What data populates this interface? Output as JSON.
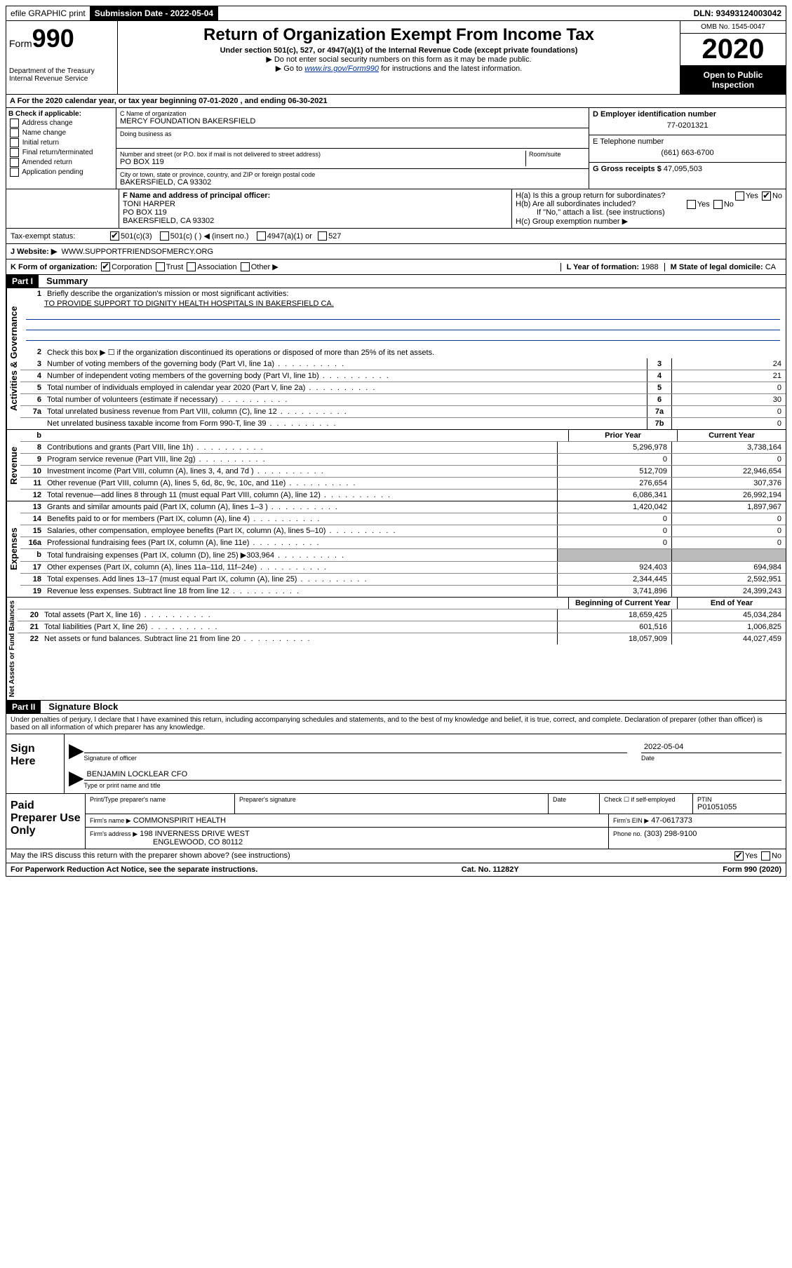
{
  "topbar": {
    "efile": "efile GRAPHIC print",
    "submission_label": "Submission Date - 2022-05-04",
    "dln": "DLN: 93493124003042"
  },
  "header": {
    "form_label": "Form",
    "form_number": "990",
    "dept": "Department of the Treasury\nInternal Revenue Service",
    "title": "Return of Organization Exempt From Income Tax",
    "subtitle": "Under section 501(c), 527, or 4947(a)(1) of the Internal Revenue Code (except private foundations)",
    "note1": "▶ Do not enter social security numbers on this form as it may be made public.",
    "note2_pre": "▶ Go to ",
    "note2_link": "www.irs.gov/Form990",
    "note2_post": " for instructions and the latest information.",
    "omb": "OMB No. 1545-0047",
    "year": "2020",
    "inspection": "Open to Public Inspection"
  },
  "line_a": "A For the 2020 calendar year, or tax year beginning 07-01-2020   , and ending 06-30-2021",
  "section_b": {
    "label": "B Check if applicable:",
    "opts": [
      "Address change",
      "Name change",
      "Initial return",
      "Final return/terminated",
      "Amended return",
      "Application pending"
    ]
  },
  "section_c": {
    "name_label": "C Name of organization",
    "name": "MERCY FOUNDATION BAKERSFIELD",
    "dba_label": "Doing business as",
    "addr_label": "Number and street (or P.O. box if mail is not delivered to street address)",
    "room_label": "Room/suite",
    "addr": "PO BOX 119",
    "city_label": "City or town, state or province, country, and ZIP or foreign postal code",
    "city": "BAKERSFIELD, CA  93302"
  },
  "section_d": {
    "label": "D Employer identification number",
    "value": "77-0201321"
  },
  "section_e": {
    "label": "E Telephone number",
    "value": "(661) 663-6700"
  },
  "section_g": {
    "label": "G Gross receipts $",
    "value": "47,095,503"
  },
  "section_f": {
    "label": "F Name and address of principal officer:",
    "name": "TONI HARPER",
    "addr1": "PO BOX 119",
    "addr2": "BAKERSFIELD, CA  93302"
  },
  "section_h": {
    "h_a": "H(a)  Is this a group return for subordinates?",
    "h_b": "H(b)  Are all subordinates included?",
    "h_note": "If \"No,\" attach a list. (see instructions)",
    "h_c": "H(c)  Group exemption number ▶"
  },
  "tax_exempt": {
    "label": "Tax-exempt status:",
    "opts": [
      "501(c)(3)",
      "501(c) (  ) ◀ (insert no.)",
      "4947(a)(1) or",
      "527"
    ]
  },
  "website": {
    "label": "J   Website: ▶",
    "value": "WWW.SUPPORTFRIENDSOFMERCY.ORG"
  },
  "korg": {
    "k_label": "K Form of organization:",
    "opts": [
      "Corporation",
      "Trust",
      "Association",
      "Other ▶"
    ],
    "l_label": "L Year of formation:",
    "l_val": "1988",
    "m_label": "M State of legal domicile:",
    "m_val": "CA"
  },
  "part1": {
    "header": "Part I",
    "title": "Summary",
    "line1": "Briefly describe the organization's mission or most significant activities:",
    "mission": "TO PROVIDE SUPPORT TO DIGNITY HEALTH HOSPITALS IN BAKERSFIELD CA.",
    "line2": "Check this box ▶ ☐  if the organization discontinued its operations or disposed of more than 25% of its net assets.",
    "lines_gov": [
      {
        "n": "3",
        "t": "Number of voting members of the governing body (Part VI, line 1a)",
        "c": "3",
        "v": "24"
      },
      {
        "n": "4",
        "t": "Number of independent voting members of the governing body (Part VI, line 1b)",
        "c": "4",
        "v": "21"
      },
      {
        "n": "5",
        "t": "Total number of individuals employed in calendar year 2020 (Part V, line 2a)",
        "c": "5",
        "v": "0"
      },
      {
        "n": "6",
        "t": "Total number of volunteers (estimate if necessary)",
        "c": "6",
        "v": "30"
      },
      {
        "n": "7a",
        "t": "Total unrelated business revenue from Part VIII, column (C), line 12",
        "c": "7a",
        "v": "0"
      },
      {
        "n": "",
        "t": "Net unrelated business taxable income from Form 990-T, line 39",
        "c": "7b",
        "v": "0"
      }
    ],
    "col_prior": "Prior Year",
    "col_current": "Current Year",
    "lines_rev": [
      {
        "n": "8",
        "t": "Contributions and grants (Part VIII, line 1h)",
        "p": "5,296,978",
        "c": "3,738,164"
      },
      {
        "n": "9",
        "t": "Program service revenue (Part VIII, line 2g)",
        "p": "0",
        "c": "0"
      },
      {
        "n": "10",
        "t": "Investment income (Part VIII, column (A), lines 3, 4, and 7d )",
        "p": "512,709",
        "c": "22,946,654"
      },
      {
        "n": "11",
        "t": "Other revenue (Part VIII, column (A), lines 5, 6d, 8c, 9c, 10c, and 11e)",
        "p": "276,654",
        "c": "307,376"
      },
      {
        "n": "12",
        "t": "Total revenue—add lines 8 through 11 (must equal Part VIII, column (A), line 12)",
        "p": "6,086,341",
        "c": "26,992,194"
      }
    ],
    "lines_exp": [
      {
        "n": "13",
        "t": "Grants and similar amounts paid (Part IX, column (A), lines 1–3 )",
        "p": "1,420,042",
        "c": "1,897,967"
      },
      {
        "n": "14",
        "t": "Benefits paid to or for members (Part IX, column (A), line 4)",
        "p": "0",
        "c": "0"
      },
      {
        "n": "15",
        "t": "Salaries, other compensation, employee benefits (Part IX, column (A), lines 5–10)",
        "p": "0",
        "c": "0"
      },
      {
        "n": "16a",
        "t": "Professional fundraising fees (Part IX, column (A), line 11e)",
        "p": "0",
        "c": "0"
      },
      {
        "n": "b",
        "t": "Total fundraising expenses (Part IX, column (D), line 25) ▶303,964",
        "p": "",
        "c": "",
        "shaded": true
      },
      {
        "n": "17",
        "t": "Other expenses (Part IX, column (A), lines 11a–11d, 11f–24e)",
        "p": "924,403",
        "c": "694,984"
      },
      {
        "n": "18",
        "t": "Total expenses. Add lines 13–17 (must equal Part IX, column (A), line 25)",
        "p": "2,344,445",
        "c": "2,592,951"
      },
      {
        "n": "19",
        "t": "Revenue less expenses. Subtract line 18 from line 12",
        "p": "3,741,896",
        "c": "24,399,243"
      }
    ],
    "col_begin": "Beginning of Current Year",
    "col_end": "End of Year",
    "lines_net": [
      {
        "n": "20",
        "t": "Total assets (Part X, line 16)",
        "p": "18,659,425",
        "c": "45,034,284"
      },
      {
        "n": "21",
        "t": "Total liabilities (Part X, line 26)",
        "p": "601,516",
        "c": "1,006,825"
      },
      {
        "n": "22",
        "t": "Net assets or fund balances. Subtract line 21 from line 20",
        "p": "18,057,909",
        "c": "44,027,459"
      }
    ],
    "vlabels": {
      "gov": "Activities & Governance",
      "rev": "Revenue",
      "exp": "Expenses",
      "net": "Net Assets or Fund Balances"
    }
  },
  "part2": {
    "header": "Part II",
    "title": "Signature Block",
    "penalty": "Under penalties of perjury, I declare that I have examined this return, including accompanying schedules and statements, and to the best of my knowledge and belief, it is true, correct, and complete. Declaration of preparer (other than officer) is based on all information of which preparer has any knowledge."
  },
  "sign": {
    "label": "Sign Here",
    "sig_label": "Signature of officer",
    "date_label": "Date",
    "date": "2022-05-04",
    "name": "BENJAMIN LOCKLEAR  CFO",
    "name_label": "Type or print name and title"
  },
  "paid": {
    "label": "Paid Preparer Use Only",
    "h1": "Print/Type preparer's name",
    "h2": "Preparer's signature",
    "h3": "Date",
    "h4_pre": "Check ☐ if self-employed",
    "h5": "PTIN",
    "ptin": "P01051055",
    "firm_label": "Firm's name    ▶",
    "firm": "COMMONSPIRIT HEALTH",
    "ein_label": "Firm's EIN ▶",
    "ein": "47-0617373",
    "addr_label": "Firm's address ▶",
    "addr1": "198 INVERNESS DRIVE WEST",
    "addr2": "ENGLEWOOD, CO  80112",
    "phone_label": "Phone no.",
    "phone": "(303) 298-9100"
  },
  "footer": {
    "discuss": "May the IRS discuss this return with the preparer shown above? (see instructions)",
    "paperwork": "For Paperwork Reduction Act Notice, see the separate instructions.",
    "catno": "Cat. No. 11282Y",
    "formver": "Form 990 (2020)"
  }
}
